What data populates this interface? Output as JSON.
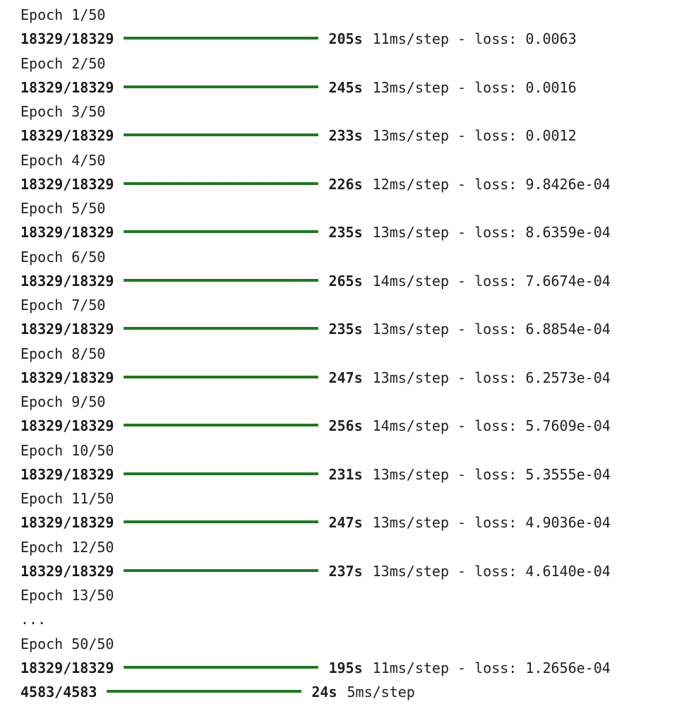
{
  "log": [
    {
      "kind": "epoch",
      "text": "Epoch 1/50"
    },
    {
      "kind": "progress",
      "steps": "18329/18329",
      "progress": 1.0,
      "time": "205s",
      "detail": "11ms/step - loss: 0.0063"
    },
    {
      "kind": "epoch",
      "text": "Epoch 2/50"
    },
    {
      "kind": "progress",
      "steps": "18329/18329",
      "progress": 1.0,
      "time": "245s",
      "detail": "13ms/step - loss: 0.0016"
    },
    {
      "kind": "epoch",
      "text": "Epoch 3/50"
    },
    {
      "kind": "progress",
      "steps": "18329/18329",
      "progress": 1.0,
      "time": "233s",
      "detail": "13ms/step - loss: 0.0012"
    },
    {
      "kind": "epoch",
      "text": "Epoch 4/50"
    },
    {
      "kind": "progress",
      "steps": "18329/18329",
      "progress": 1.0,
      "time": "226s",
      "detail": "12ms/step - loss: 9.8426e-04"
    },
    {
      "kind": "epoch",
      "text": "Epoch 5/50"
    },
    {
      "kind": "progress",
      "steps": "18329/18329",
      "progress": 1.0,
      "time": "235s",
      "detail": "13ms/step - loss: 8.6359e-04"
    },
    {
      "kind": "epoch",
      "text": "Epoch 6/50"
    },
    {
      "kind": "progress",
      "steps": "18329/18329",
      "progress": 1.0,
      "time": "265s",
      "detail": "14ms/step - loss: 7.6674e-04"
    },
    {
      "kind": "epoch",
      "text": "Epoch 7/50"
    },
    {
      "kind": "progress",
      "steps": "18329/18329",
      "progress": 1.0,
      "time": "235s",
      "detail": "13ms/step - loss: 6.8854e-04"
    },
    {
      "kind": "epoch",
      "text": "Epoch 8/50"
    },
    {
      "kind": "progress",
      "steps": "18329/18329",
      "progress": 1.0,
      "time": "247s",
      "detail": "13ms/step - loss: 6.2573e-04"
    },
    {
      "kind": "epoch",
      "text": "Epoch 9/50"
    },
    {
      "kind": "progress",
      "steps": "18329/18329",
      "progress": 1.0,
      "time": "256s",
      "detail": "14ms/step - loss: 5.7609e-04"
    },
    {
      "kind": "epoch",
      "text": "Epoch 10/50"
    },
    {
      "kind": "progress",
      "steps": "18329/18329",
      "progress": 1.0,
      "time": "231s",
      "detail": "13ms/step - loss: 5.3555e-04"
    },
    {
      "kind": "epoch",
      "text": "Epoch 11/50"
    },
    {
      "kind": "progress",
      "steps": "18329/18329",
      "progress": 1.0,
      "time": "247s",
      "detail": "13ms/step - loss: 4.9036e-04"
    },
    {
      "kind": "epoch",
      "text": "Epoch 12/50"
    },
    {
      "kind": "progress",
      "steps": "18329/18329",
      "progress": 1.0,
      "time": "237s",
      "detail": "13ms/step - loss: 4.6140e-04"
    },
    {
      "kind": "epoch",
      "text": "Epoch 13/50"
    },
    {
      "kind": "epoch",
      "text": "..."
    },
    {
      "kind": "epoch",
      "text": "Epoch 50/50"
    },
    {
      "kind": "progress",
      "steps": "18329/18329",
      "progress": 1.0,
      "time": "195s",
      "detail": "11ms/step - loss: 1.2656e-04"
    },
    {
      "kind": "progress",
      "steps": "4583/4583",
      "progress": 1.0,
      "time": "24s",
      "detail": "5ms/step"
    }
  ],
  "colors": {
    "progress_bar": "#1f7a1f",
    "text": "#212121",
    "background": "#ffffff"
  }
}
